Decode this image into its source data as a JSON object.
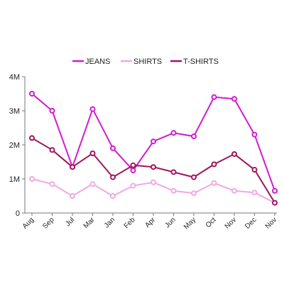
{
  "chart_data": {
    "type": "line",
    "categories": [
      "Aug",
      "Sep",
      "Jul",
      "Mar",
      "Jan",
      "Feb",
      "Apr",
      "Jun",
      "May",
      "Oct",
      "Nov",
      "Dec",
      "Nov"
    ],
    "series": [
      {
        "name": "JEANS",
        "color": "#d21ad2",
        "values": [
          3500000,
          3000000,
          1350000,
          3050000,
          1900000,
          1250000,
          2100000,
          2350000,
          2250000,
          3400000,
          3350000,
          2300000,
          650000
        ]
      },
      {
        "name": "SHIRTS",
        "color": "#f0a8e6",
        "values": [
          1000000,
          850000,
          500000,
          850000,
          500000,
          800000,
          900000,
          650000,
          580000,
          880000,
          650000,
          600000,
          300000
        ]
      },
      {
        "name": "T-SHIRTS",
        "color": "#a0155c",
        "values": [
          2200000,
          1850000,
          1350000,
          1750000,
          1050000,
          1400000,
          1350000,
          1200000,
          1050000,
          1430000,
          1730000,
          1270000,
          300000
        ]
      }
    ],
    "yticks": [
      {
        "value": 0,
        "label": "0"
      },
      {
        "value": 1000000,
        "label": "1M"
      },
      {
        "value": 2000000,
        "label": "2M"
      },
      {
        "value": 3000000,
        "label": "3M"
      },
      {
        "value": 4000000,
        "label": "4M"
      }
    ],
    "ylim": [
      0,
      4000000
    ],
    "title": "",
    "xlabel": "",
    "ylabel": "",
    "grid": false,
    "legend_position": "top"
  }
}
